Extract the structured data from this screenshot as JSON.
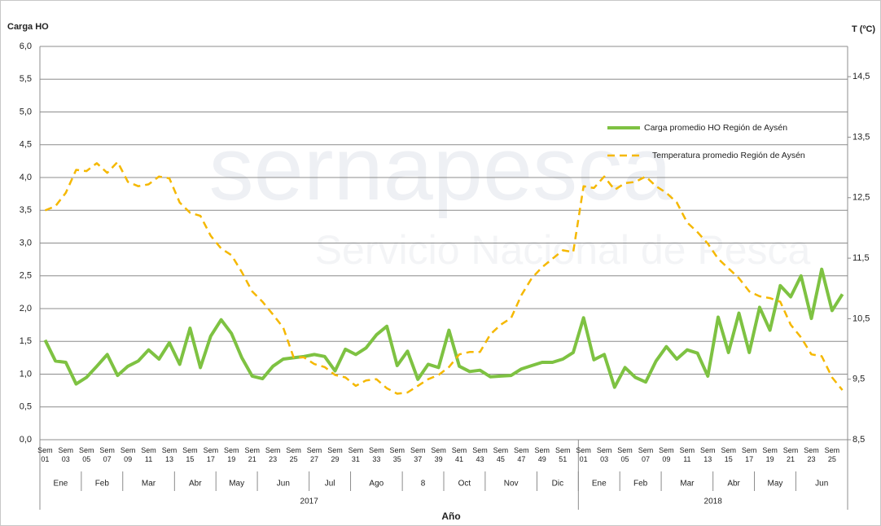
{
  "chart_data": {
    "type": "line",
    "y_label": "Carga HO",
    "y2_label": "T (ºC)",
    "x_label": "Año",
    "watermark": [
      "sernapesca",
      "Servicio Nacional de Pesca"
    ],
    "categories": [
      "Sem 01",
      null,
      "Sem 03",
      null,
      "Sem 05",
      null,
      "Sem 07",
      null,
      "Sem 09",
      null,
      "Sem 11",
      null,
      "Sem 13",
      null,
      "Sem 15",
      null,
      "Sem 17",
      null,
      "Sem 19",
      null,
      "Sem 21",
      null,
      "Sem 23",
      null,
      "Sem 25",
      null,
      "Sem 27",
      null,
      "Sem 29",
      null,
      "Sem 31",
      null,
      "Sem 33",
      null,
      "Sem 35",
      null,
      "Sem 37",
      null,
      "Sem 39",
      null,
      "Sem 41",
      null,
      "Sem 43",
      null,
      "Sem 45",
      null,
      "Sem 47",
      null,
      "Sem 49",
      null,
      "Sem 51",
      null,
      "Sem 01",
      null,
      "Sem 03",
      null,
      "Sem 05",
      null,
      "Sem 07",
      null,
      "Sem 09",
      null,
      "Sem 11",
      null,
      "Sem 13",
      null,
      "Sem 15",
      null,
      "Sem 17",
      null,
      "Sem 19",
      null,
      "Sem 21",
      null,
      "Sem 23",
      null,
      "Sem 25",
      null
    ],
    "month_groups": [
      {
        "label": "Ene",
        "span": 4
      },
      {
        "label": "Feb",
        "span": 4
      },
      {
        "label": "Mar",
        "span": 5
      },
      {
        "label": "Abr",
        "span": 4
      },
      {
        "label": "May",
        "span": 4
      },
      {
        "label": "Jun",
        "span": 5
      },
      {
        "label": "Jul",
        "span": 4
      },
      {
        "label": "Ago",
        "span": 5
      },
      {
        "label": "8",
        "span": 4
      },
      {
        "label": "Oct",
        "span": 4
      },
      {
        "label": "Nov",
        "span": 5
      },
      {
        "label": "Dic",
        "span": 4
      },
      {
        "label": "Ene",
        "span": 4
      },
      {
        "label": "Feb",
        "span": 4
      },
      {
        "label": "Mar",
        "span": 5
      },
      {
        "label": "Abr",
        "span": 4
      },
      {
        "label": "May",
        "span": 4
      },
      {
        "label": "Jun",
        "span": 5
      }
    ],
    "year_groups": [
      {
        "label": "2017",
        "span": 52
      },
      {
        "label": "2018",
        "span": 26
      }
    ],
    "series": [
      {
        "name": "Carga promedio HO Región de Aysén",
        "color": "#7ec242",
        "line_style": "solid",
        "values": [
          1.52,
          1.2,
          1.18,
          0.85,
          0.95,
          1.12,
          1.3,
          0.98,
          1.12,
          1.2,
          1.37,
          1.23,
          1.48,
          1.15,
          1.7,
          1.1,
          1.58,
          1.83,
          1.62,
          1.25,
          0.97,
          0.93,
          1.12,
          1.23,
          1.25,
          1.27,
          1.3,
          1.27,
          1.05,
          1.38,
          1.3,
          1.4,
          1.6,
          1.73,
          1.13,
          1.35,
          0.92,
          1.15,
          1.1,
          1.67,
          1.12,
          1.04,
          1.06,
          0.96,
          0.97,
          0.98,
          1.08,
          1.13,
          1.18,
          1.18,
          1.23,
          1.33,
          1.86,
          1.22,
          1.3,
          0.8,
          1.1,
          0.95,
          0.88,
          1.2,
          1.42,
          1.23,
          1.37,
          1.32,
          0.97,
          1.87,
          1.33,
          1.93,
          1.33,
          2.02,
          1.67,
          2.35,
          2.18,
          2.5,
          1.85,
          2.6,
          1.97,
          2.22
        ]
      },
      {
        "name": "Temperatura promedio Región de Aysén",
        "color": "#f5b800",
        "line_style": "dashed",
        "axis": "y2",
        "values": [
          12.29,
          12.36,
          12.58,
          12.96,
          12.94,
          13.07,
          12.91,
          13.09,
          12.76,
          12.69,
          12.72,
          12.85,
          12.82,
          12.42,
          12.25,
          12.2,
          11.87,
          11.66,
          11.55,
          11.27,
          10.95,
          10.78,
          10.57,
          10.35,
          9.86,
          9.86,
          9.75,
          9.7,
          9.57,
          9.53,
          9.39,
          9.48,
          9.5,
          9.35,
          9.26,
          9.28,
          9.39,
          9.5,
          9.57,
          9.7,
          9.91,
          9.95,
          9.95,
          10.24,
          10.4,
          10.51,
          10.89,
          11.17,
          11.35,
          11.49,
          11.63,
          11.6,
          12.69,
          12.66,
          12.85,
          12.63,
          12.74,
          12.76,
          12.85,
          12.69,
          12.58,
          12.42,
          12.09,
          11.93,
          11.74,
          11.49,
          11.33,
          11.17,
          10.95,
          10.87,
          10.84,
          10.78,
          10.4,
          10.19,
          9.91,
          9.88,
          9.53,
          9.32
        ]
      }
    ],
    "ylim": [
      0,
      6
    ],
    "yticks": [
      {
        "value": 0,
        "label": "0,0"
      },
      {
        "value": 0.5,
        "label": "0,5"
      },
      {
        "value": 1,
        "label": "1,0"
      },
      {
        "value": 1.5,
        "label": "1,5"
      },
      {
        "value": 2,
        "label": "2,0"
      },
      {
        "value": 2.5,
        "label": "2,5"
      },
      {
        "value": 3,
        "label": "3,0"
      },
      {
        "value": 3.5,
        "label": "3,5"
      },
      {
        "value": 4,
        "label": "4,0"
      },
      {
        "value": 4.5,
        "label": "4,5"
      },
      {
        "value": 5,
        "label": "5,0"
      },
      {
        "value": 5.5,
        "label": "5,5"
      },
      {
        "value": 6,
        "label": "6,0"
      }
    ],
    "y2lim": [
      8.5,
      15
    ],
    "y2ticks": [
      {
        "value": 8.5,
        "label": "8,5"
      },
      {
        "value": 9.5,
        "label": "9,5"
      },
      {
        "value": 10.5,
        "label": "10,5"
      },
      {
        "value": 11.5,
        "label": "11,5"
      },
      {
        "value": 12.5,
        "label": "12,5"
      },
      {
        "value": 13.5,
        "label": "13,5"
      },
      {
        "value": 14.5,
        "label": "14,5"
      }
    ],
    "grid": true,
    "legend": "upper right"
  }
}
